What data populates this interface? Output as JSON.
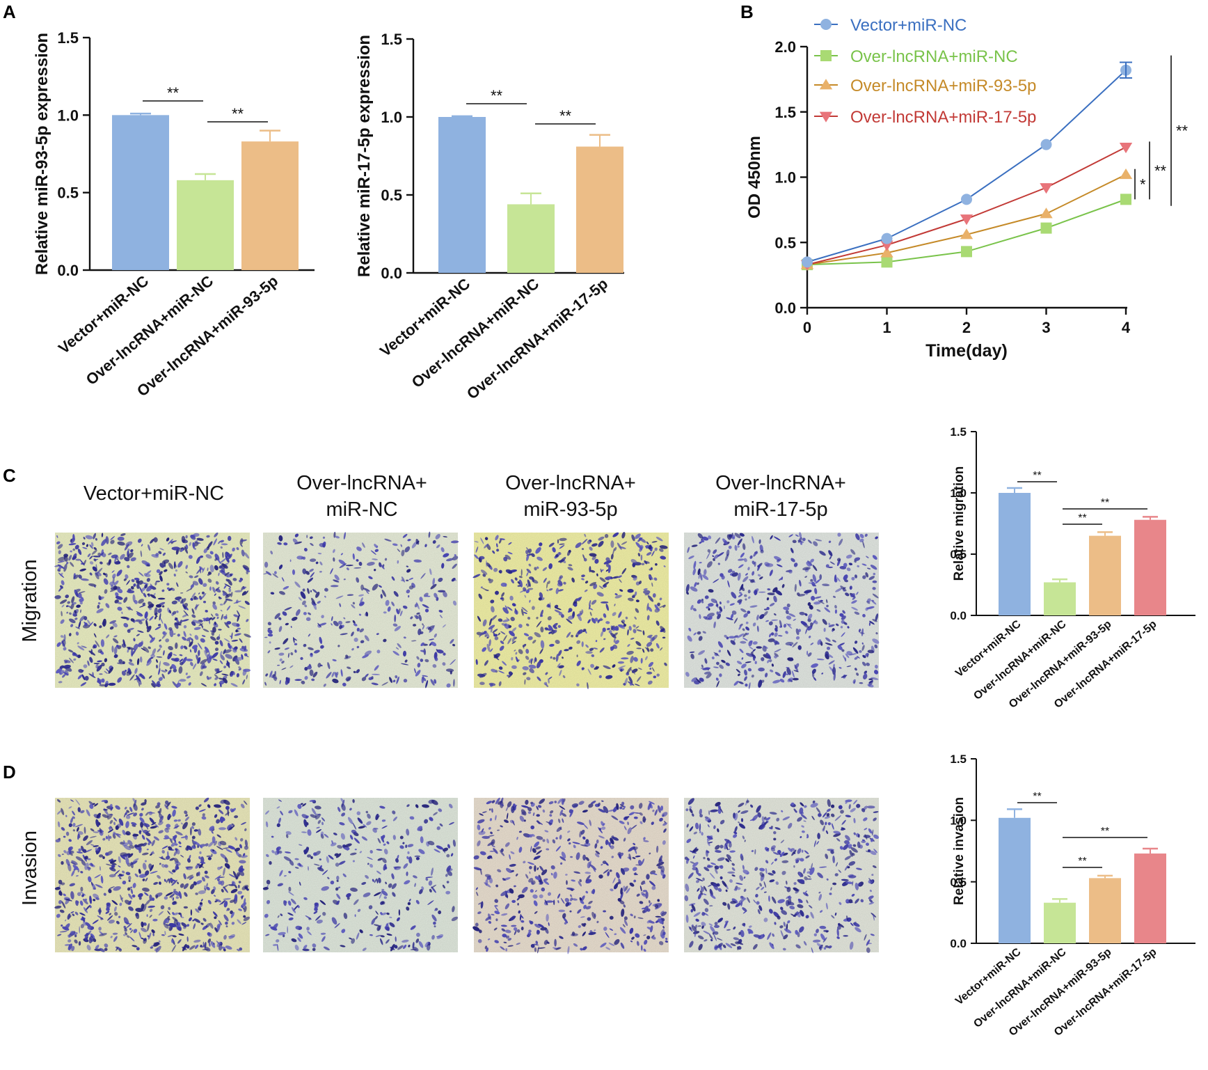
{
  "panels": {
    "a": "A",
    "b": "B",
    "c": "C",
    "d": "D"
  },
  "colors": {
    "blue": "#8fb2e0",
    "green": "#c6e596",
    "orange": "#ecbd87",
    "red": "#e8868a",
    "line_blue": "#3a6fc0",
    "line_green": "#79c34a",
    "line_orange": "#c58a28",
    "line_red": "#c23a36",
    "mark_blue": "#8fb2e0",
    "mark_green": "#a9da73",
    "mark_orange": "#e9b169",
    "mark_red": "#e8747a"
  },
  "micrograph_section": {
    "group_titles": [
      [
        "Vector+miR-NC"
      ],
      [
        "Over-lncRNA+",
        "miR-NC"
      ],
      [
        "Over-lncRNA+",
        "miR-93-5p"
      ],
      [
        "Over-lncRNA+",
        "miR-17-5p"
      ]
    ],
    "row_labels": [
      "Migration",
      "Invasion"
    ],
    "images": [
      {
        "row": "Migration",
        "group": "Vector+miR-NC",
        "density": "high",
        "bg": "#e7ebc0"
      },
      {
        "row": "Migration",
        "group": "Over-lncRNA+miR-NC",
        "density": "low",
        "bg": "#e4e9d6"
      },
      {
        "row": "Migration",
        "group": "Over-lncRNA+miR-93-5p",
        "density": "medium",
        "bg": "#eeeda5"
      },
      {
        "row": "Migration",
        "group": "Over-lncRNA+miR-17-5p",
        "density": "medium",
        "bg": "#dfe4df"
      },
      {
        "row": "Invasion",
        "group": "Vector+miR-NC",
        "density": "high",
        "bg": "#e7e5b9"
      },
      {
        "row": "Invasion",
        "group": "Over-lncRNA+miR-NC",
        "density": "low",
        "bg": "#dde5da"
      },
      {
        "row": "Invasion",
        "group": "Over-lncRNA+miR-93-5p",
        "density": "medium",
        "bg": "#e6dccd"
      },
      {
        "row": "Invasion",
        "group": "Over-lncRNA+miR-17-5p",
        "density": "medium",
        "bg": "#e1e4da"
      }
    ]
  },
  "chart_data": [
    {
      "id": "a1",
      "type": "bar",
      "ylabel": "Relative miR-93-5p expression",
      "categories": [
        "Vector+miR-NC",
        "Over-lncRNA+miR-NC",
        "Over-lncRNA+miR-93-5p"
      ],
      "values": [
        1.0,
        0.58,
        0.83
      ],
      "errors": [
        0.01,
        0.04,
        0.07
      ],
      "colors": [
        "#8fb2e0",
        "#c6e596",
        "#ecbd87"
      ],
      "ylim": [
        0,
        1.5
      ],
      "yticks": [
        "0.0",
        "0.5",
        "1.0",
        "1.5"
      ],
      "significance": [
        {
          "from": 0,
          "to": 1,
          "label": "**"
        },
        {
          "from": 1,
          "to": 2,
          "label": "**"
        }
      ]
    },
    {
      "id": "a2",
      "type": "bar",
      "ylabel": "Relative miR-17-5p expression",
      "categories": [
        "Vector+miR-NC",
        "Over-lncRNA+miR-NC",
        "Over-lncRNA+miR-17-5p"
      ],
      "values": [
        1.0,
        0.44,
        0.81
      ],
      "errors": [
        0.005,
        0.07,
        0.075
      ],
      "colors": [
        "#8fb2e0",
        "#c6e596",
        "#ecbd87"
      ],
      "ylim": [
        0,
        1.5
      ],
      "yticks": [
        "0.0",
        "0.5",
        "1.0",
        "1.5"
      ],
      "significance": [
        {
          "from": 0,
          "to": 1,
          "label": "**"
        },
        {
          "from": 1,
          "to": 2,
          "label": "**"
        }
      ]
    },
    {
      "id": "b",
      "type": "line",
      "xlabel": "Time(day)",
      "ylabel": "OD 450nm",
      "x": [
        0,
        1,
        2,
        3,
        4
      ],
      "xticks": [
        "0",
        "1",
        "2",
        "3",
        "4"
      ],
      "ylim": [
        0,
        2.0
      ],
      "yticks": [
        "0.0",
        "0.5",
        "1.0",
        "1.5",
        "2.0"
      ],
      "series": [
        {
          "name": "Vector+miR-NC",
          "values": [
            0.35,
            0.53,
            0.83,
            1.25,
            1.82
          ],
          "error_last": 0.06,
          "marker": "circle"
        },
        {
          "name": "Over-lncRNA+miR-NC",
          "values": [
            0.33,
            0.35,
            0.43,
            0.61,
            0.83
          ],
          "marker": "square"
        },
        {
          "name": "Over-lncRNA+miR-93-5p",
          "values": [
            0.33,
            0.42,
            0.56,
            0.72,
            1.02
          ],
          "marker": "triangle-up"
        },
        {
          "name": "Over-lncRNA+miR-17-5p",
          "values": [
            0.33,
            0.48,
            0.68,
            0.92,
            1.23
          ],
          "marker": "triangle-down"
        }
      ],
      "significance": [
        {
          "label": "*",
          "between": [
            "Over-lncRNA+miR-93-5p",
            "Over-lncRNA+miR-NC"
          ]
        },
        {
          "label": "**",
          "between": [
            "Over-lncRNA+miR-17-5p",
            "Over-lncRNA+miR-NC"
          ]
        },
        {
          "label": "**",
          "between": [
            "Vector+miR-NC",
            "Over-lncRNA+miR-NC"
          ]
        }
      ]
    },
    {
      "id": "c",
      "type": "bar",
      "ylabel": "Relative  migration",
      "categories": [
        "Vector+miR-NC",
        "Over-lncRNA+miR-NC",
        "Over-lncRNA+miR-93-5p",
        "Over-lncRNA+miR-17-5p"
      ],
      "values": [
        1.0,
        0.27,
        0.65,
        0.78
      ],
      "errors": [
        0.04,
        0.025,
        0.03,
        0.025
      ],
      "colors": [
        "#8fb2e0",
        "#c6e596",
        "#ecbd87",
        "#e8868a"
      ],
      "ylim": [
        0,
        1.5
      ],
      "yticks": [
        "0.0",
        "0.5",
        "1.0",
        "1.5"
      ],
      "significance": [
        {
          "from": 0,
          "to": 1,
          "label": "**"
        },
        {
          "from": 1,
          "to": 2,
          "label": "**"
        },
        {
          "from": 1,
          "to": 3,
          "label": "**"
        }
      ]
    },
    {
      "id": "d",
      "type": "bar",
      "ylabel": "Relative invasion",
      "categories": [
        "Vector+miR-NC",
        "Over-lncRNA+miR-NC",
        "Over-lncRNA+miR-93-5p",
        "Over-lncRNA+miR-17-5p"
      ],
      "values": [
        1.02,
        0.33,
        0.53,
        0.73
      ],
      "errors": [
        0.07,
        0.03,
        0.02,
        0.04
      ],
      "colors": [
        "#8fb2e0",
        "#c6e596",
        "#ecbd87",
        "#e8868a"
      ],
      "ylim": [
        0,
        1.5
      ],
      "yticks": [
        "0.0",
        "0.5",
        "1.0",
        "1.5"
      ],
      "significance": [
        {
          "from": 0,
          "to": 1,
          "label": "**"
        },
        {
          "from": 1,
          "to": 2,
          "label": "**"
        },
        {
          "from": 1,
          "to": 3,
          "label": "**"
        }
      ]
    }
  ]
}
